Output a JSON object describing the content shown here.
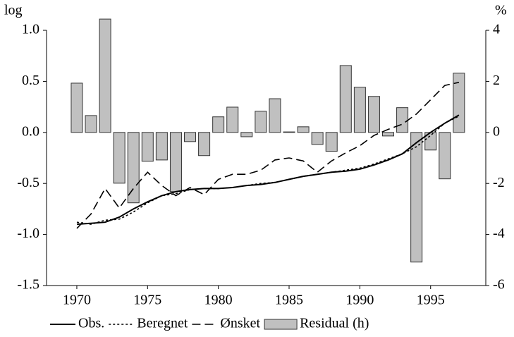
{
  "chart_data": {
    "type": "combo",
    "y_axis_label": "log",
    "y2_axis_label": "%",
    "x": [
      1970,
      1971,
      1972,
      1973,
      1974,
      1975,
      1976,
      1977,
      1978,
      1979,
      1980,
      1981,
      1982,
      1983,
      1984,
      1985,
      1986,
      1987,
      1988,
      1989,
      1990,
      1991,
      1992,
      1993,
      1994,
      1995,
      1996,
      1997
    ],
    "xlim": [
      1967.86,
      1998.9
    ],
    "xticks": [
      1970,
      1975,
      1980,
      1985,
      1990,
      1995
    ],
    "ylim": [
      -1.5,
      1.0
    ],
    "yticks": [
      {
        "value": -1.5,
        "label": "-1.5"
      },
      {
        "value": -1,
        "label": "-1.0"
      },
      -0.5,
      {
        "value": 0,
        "label": "0.0"
      },
      0.5,
      {
        "value": 1,
        "label": "1.0"
      }
    ],
    "y2lim": [
      -6,
      4
    ],
    "y2ticks": [
      -6,
      -4,
      -2,
      0,
      2,
      4
    ],
    "series": [
      {
        "name": "Residual (h)",
        "kind": "bar",
        "axis": "y2",
        "color": "#c0c0c0",
        "values": [
          1.93,
          0.66,
          4.44,
          -1.99,
          -2.76,
          -1.13,
          -1.08,
          -2.32,
          -0.36,
          -0.91,
          0.61,
          0.99,
          -0.17,
          0.83,
          1.32,
          0.02,
          0.22,
          -0.47,
          -0.74,
          2.62,
          1.77,
          1.41,
          -0.14,
          0.97,
          -5.08,
          -0.69,
          -1.82,
          2.32
        ]
      },
      {
        "name": "Obs.",
        "kind": "line",
        "dash": "solid",
        "color": "#000000",
        "values": [
          -0.9,
          -0.89,
          -0.88,
          -0.83,
          -0.75,
          -0.68,
          -0.62,
          -0.58,
          -0.56,
          -0.55,
          -0.55,
          -0.54,
          -0.52,
          -0.51,
          -0.49,
          -0.46,
          -0.43,
          -0.41,
          -0.39,
          -0.38,
          -0.36,
          -0.32,
          -0.27,
          -0.21,
          -0.1,
          0.0,
          0.09,
          0.17
        ]
      },
      {
        "name": "Beregnet",
        "kind": "line",
        "dash": "dotted",
        "color": "#000000",
        "values": [
          -0.88,
          -0.9,
          -0.86,
          -0.85,
          -0.78,
          -0.69,
          -0.62,
          -0.6,
          -0.56,
          -0.55,
          -0.55,
          -0.54,
          -0.52,
          -0.5,
          -0.49,
          -0.46,
          -0.43,
          -0.41,
          -0.39,
          -0.37,
          -0.35,
          -0.31,
          -0.26,
          -0.21,
          -0.14,
          -0.03,
          0.09,
          0.16
        ]
      },
      {
        "name": "Ønsket",
        "kind": "line",
        "dash": "dashed",
        "color": "#000000",
        "values": [
          -0.94,
          -0.8,
          -0.55,
          -0.74,
          -0.55,
          -0.39,
          -0.52,
          -0.62,
          -0.54,
          -0.61,
          -0.46,
          -0.41,
          -0.41,
          -0.37,
          -0.27,
          -0.25,
          -0.28,
          -0.39,
          -0.28,
          -0.2,
          -0.13,
          -0.03,
          0.03,
          0.08,
          0.18,
          0.32,
          0.46,
          0.49
        ]
      }
    ]
  }
}
